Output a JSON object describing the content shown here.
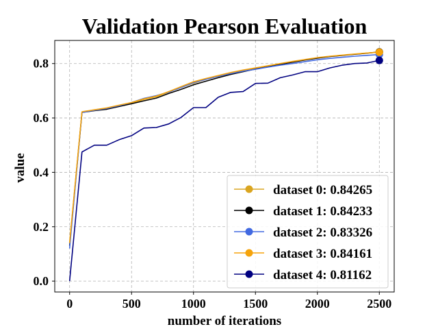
{
  "chart_data": {
    "type": "line",
    "title": "Validation Pearson Evaluation",
    "xlabel": "number of iterations",
    "ylabel": "value",
    "xlim": [
      -120,
      2620
    ],
    "ylim": [
      -0.04,
      0.885
    ],
    "xticks": [
      0,
      500,
      1000,
      1500,
      2000,
      2500
    ],
    "yticks": [
      0.0,
      0.2,
      0.4,
      0.6,
      0.8
    ],
    "ytick_labels": [
      "0.0",
      "0.2",
      "0.4",
      "0.6",
      "0.8"
    ],
    "grid": true,
    "legend_position": "lower-right",
    "x": [
      0,
      100,
      200,
      300,
      400,
      500,
      600,
      700,
      800,
      900,
      1000,
      1100,
      1200,
      1300,
      1400,
      1500,
      1600,
      1700,
      1800,
      1900,
      2000,
      2100,
      2200,
      2300,
      2400,
      2500
    ],
    "series": [
      {
        "name": "dataset 0",
        "label": "dataset 0: 0.84265",
        "color": "#daa520",
        "values": [
          0.14,
          0.62,
          0.63,
          0.635,
          0.645,
          0.655,
          0.668,
          0.678,
          0.695,
          0.712,
          0.728,
          0.742,
          0.753,
          0.763,
          0.773,
          0.782,
          0.79,
          0.798,
          0.806,
          0.814,
          0.82,
          0.826,
          0.83,
          0.834,
          0.838,
          0.84265
        ]
      },
      {
        "name": "dataset 1",
        "label": "dataset 1: 0.84233",
        "color": "#000000",
        "values": [
          0.13,
          0.62,
          0.627,
          0.632,
          0.642,
          0.652,
          0.663,
          0.673,
          0.69,
          0.705,
          0.722,
          0.735,
          0.748,
          0.76,
          0.77,
          0.78,
          0.788,
          0.797,
          0.805,
          0.813,
          0.82,
          0.826,
          0.83,
          0.834,
          0.838,
          0.84233
        ]
      },
      {
        "name": "dataset 2",
        "label": "dataset 2: 0.83326",
        "color": "#4169e1",
        "values": [
          0.12,
          0.62,
          0.628,
          0.635,
          0.645,
          0.657,
          0.672,
          0.682,
          0.695,
          0.712,
          0.73,
          0.742,
          0.753,
          0.763,
          0.772,
          0.779,
          0.787,
          0.794,
          0.8,
          0.807,
          0.814,
          0.819,
          0.823,
          0.827,
          0.83,
          0.83326
        ]
      },
      {
        "name": "dataset 3",
        "label": "dataset 3: 0.84161",
        "color": "#f5a30b",
        "values": [
          0.14,
          0.623,
          0.63,
          0.637,
          0.647,
          0.657,
          0.67,
          0.68,
          0.697,
          0.715,
          0.733,
          0.745,
          0.756,
          0.767,
          0.776,
          0.784,
          0.792,
          0.8,
          0.808,
          0.815,
          0.822,
          0.827,
          0.831,
          0.835,
          0.839,
          0.84161
        ]
      },
      {
        "name": "dataset 4",
        "label": "dataset 4: 0.81162",
        "color": "#000080",
        "values": [
          0.0,
          0.475,
          0.5,
          0.5,
          0.52,
          0.535,
          0.563,
          0.565,
          0.578,
          0.602,
          0.638,
          0.638,
          0.676,
          0.694,
          0.697,
          0.727,
          0.728,
          0.748,
          0.758,
          0.77,
          0.77,
          0.784,
          0.794,
          0.8,
          0.802,
          0.81162
        ]
      }
    ]
  }
}
